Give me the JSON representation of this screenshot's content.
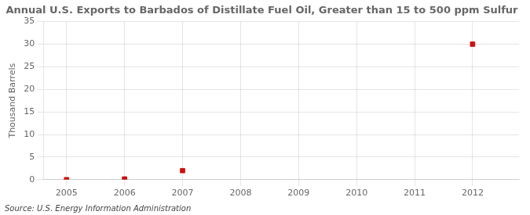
{
  "chart_data": {
    "type": "scatter",
    "title": "Annual U.S. Exports to Barbados of Distillate Fuel Oil, Greater than 15 to 500 ppm Sulfur",
    "ylabel": "Thousand Barrels",
    "annotations": [
      "Source: U.S. Energy Information Administration"
    ],
    "x": [
      2005,
      2006,
      2007,
      2012
    ],
    "values": [
      0,
      0.15,
      2,
      30
    ],
    "color": "#cc1111",
    "marker": "square",
    "xlim": [
      2004.6,
      2012.8
    ],
    "xticks": [
      2005,
      2006,
      2007,
      2008,
      2009,
      2010,
      2011,
      2012
    ],
    "ylim": [
      0,
      35
    ],
    "yticks": [
      0,
      5,
      10,
      15,
      20,
      25,
      30,
      35
    ],
    "grid": true
  }
}
